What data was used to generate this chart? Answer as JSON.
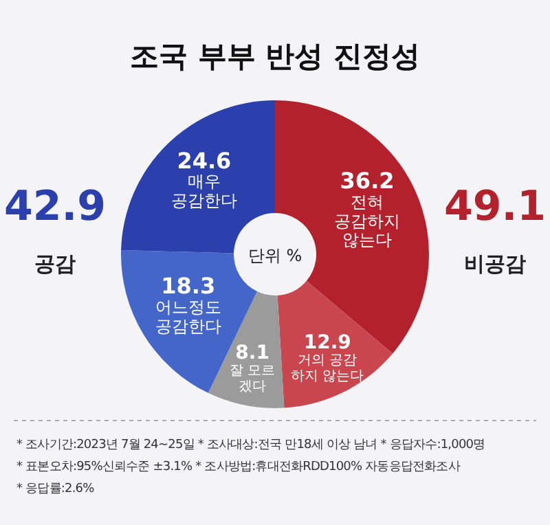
{
  "chart_data": {
    "type": "donut",
    "title": "조국 부부 반성 진정성",
    "categories": [
      "전혀\n공감하지\n않는다",
      "거의 공감\n하지 않는다",
      "잘 모르\n겠다",
      "어느정도\n공감한다",
      "매우\n공감한다"
    ],
    "values": [
      36.2,
      12.9,
      8.1,
      18.3,
      24.6
    ],
    "colors": [
      "#b3222c",
      "#c9464e",
      "#9b9b9b",
      "#4466c8",
      "#2b40ad"
    ],
    "data_labels": true,
    "annotations": [
      "42.9",
      "공감",
      "49.1",
      "비공감",
      "단위 %",
      "* 조사기간:2023년 7월 24~25일  * 조사대상:전국 만18세 이상 남녀  * 응답자수:1,000명",
      "* 표본오차:95%신뢰수준 ±3.1%  * 조사방법:휴대전화RDD100% 자동응답전화조사",
      "* 응답률:2.6%"
    ]
  }
}
